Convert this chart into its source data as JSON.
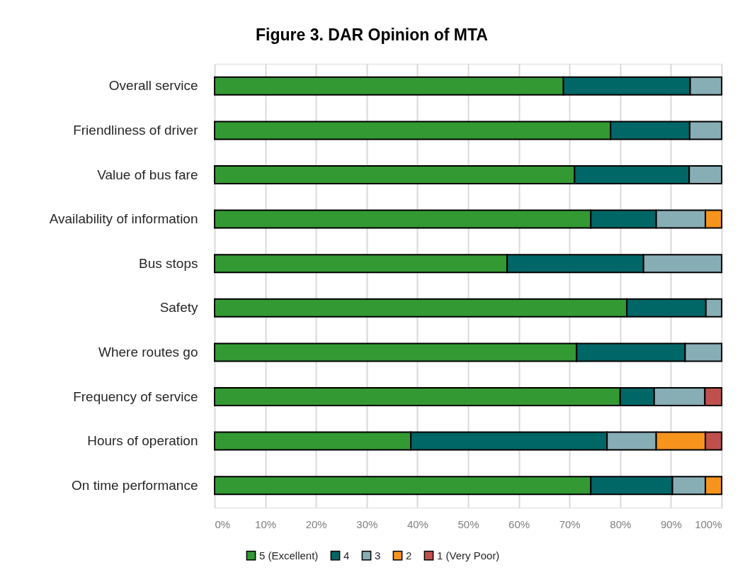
{
  "chart_data": {
    "type": "bar",
    "orientation": "horizontal",
    "stacked": true,
    "title": "Figure 3. DAR Opinion of MTA",
    "categories": [
      "Overall service",
      "Friendliness of driver",
      "Value of bus fare",
      "Availability of information",
      "Bus stops",
      "Safety",
      "Where routes go",
      "Frequency of service",
      "Hours of operation",
      "On time performance"
    ],
    "series": [
      {
        "name": "5 (Excellent)",
        "color": "#339933",
        "values": [
          68.8,
          78.1,
          71.0,
          74.2,
          57.7,
          81.3,
          71.4,
          80.0,
          38.7,
          74.2
        ]
      },
      {
        "name": "4",
        "color": "#006666",
        "values": [
          25.0,
          15.6,
          22.6,
          12.9,
          26.9,
          15.6,
          21.4,
          6.7,
          38.7,
          16.1
        ]
      },
      {
        "name": "3",
        "color": "#87adb5",
        "values": [
          6.2,
          6.3,
          6.4,
          9.7,
          15.4,
          3.1,
          7.2,
          10.0,
          9.7,
          6.5
        ]
      },
      {
        "name": "2",
        "color": "#f7941d",
        "values": [
          null,
          null,
          null,
          3.2,
          null,
          null,
          null,
          null,
          9.7,
          3.2
        ]
      },
      {
        "name": "1 (Very Poor)",
        "color": "#c0504d",
        "values": [
          null,
          null,
          null,
          null,
          null,
          null,
          null,
          3.3,
          3.2,
          null
        ]
      }
    ],
    "xlim": [
      0,
      100
    ],
    "xticks": [
      {
        "value": 0,
        "label": "0%"
      },
      {
        "value": 10,
        "label": "10%"
      },
      {
        "value": 20,
        "label": "20%"
      },
      {
        "value": 30,
        "label": "30%"
      },
      {
        "value": 40,
        "label": "40%"
      },
      {
        "value": 50,
        "label": "50%"
      },
      {
        "value": 60,
        "label": "60%"
      },
      {
        "value": 70,
        "label": "70%"
      },
      {
        "value": 80,
        "label": "80%"
      },
      {
        "value": 90,
        "label": "90%"
      },
      {
        "value": 100,
        "label": "100%"
      }
    ],
    "grid": "x",
    "legend": "bottom"
  }
}
